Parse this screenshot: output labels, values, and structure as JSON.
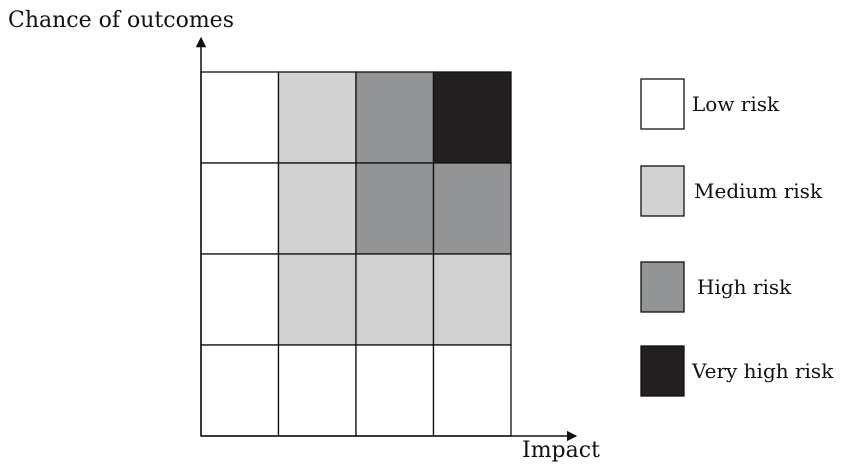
{
  "axes": {
    "y_title": "Chance of outcomes",
    "x_title": "Impact"
  },
  "legend": {
    "items": [
      {
        "label": "Low risk",
        "color": "#ffffff"
      },
      {
        "label": "Medium risk",
        "color": "#d2d2d3"
      },
      {
        "label": "High risk",
        "color": "#939496"
      },
      {
        "label": "Very high risk",
        "color": "#231f20"
      }
    ]
  },
  "grid": {
    "rows": 4,
    "cols": 4,
    "cells": [
      [
        0,
        1,
        2,
        3
      ],
      [
        0,
        1,
        2,
        2
      ],
      [
        0,
        1,
        1,
        1
      ],
      [
        0,
        0,
        0,
        0
      ]
    ]
  }
}
